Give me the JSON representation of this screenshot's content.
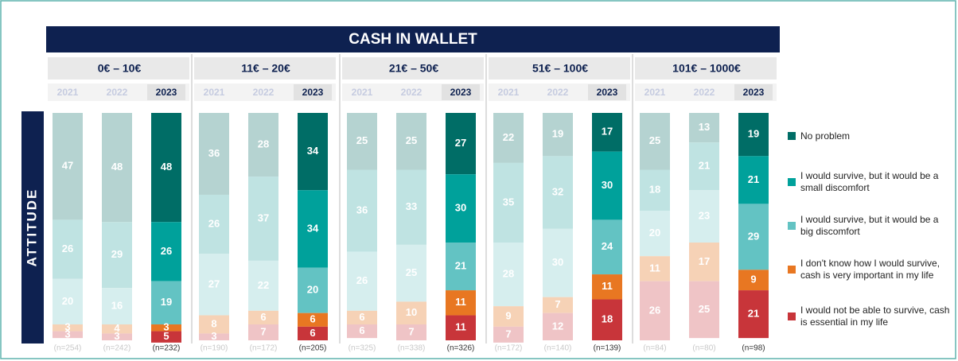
{
  "chart_data": {
    "type": "stacked-bar-groups",
    "title": "CASH IN WALLET",
    "ylabel": "ATTITUDE",
    "ylim": [
      0,
      100
    ],
    "series": [
      {
        "name": "No problem",
        "color": "#006d66",
        "faded_color": "#b5d3d1"
      },
      {
        "name": "I would survive, but it would be a small discomfort",
        "color": "#00a19b",
        "faded_color": "#bfe3e2"
      },
      {
        "name": "I would survive, but it would be a big discomfort",
        "color": "#63c3c3",
        "faded_color": "#d6eeee"
      },
      {
        "name": "I don't know how I would survive, cash is very important in my life",
        "color": "#e87722",
        "faded_color": "#f6d2b6"
      },
      {
        "name": "I would not be able to survive, cash is essential in my life",
        "color": "#c8353a",
        "faded_color": "#efc4c6"
      }
    ],
    "groups": [
      {
        "label": "0€ – 10€",
        "years": [
          "2021",
          "2022",
          "2023"
        ],
        "n_labels": [
          "(n=254)",
          "(n=242)",
          "(n=232)"
        ],
        "values": [
          [
            47,
            26,
            20,
            3,
            3
          ],
          [
            48,
            29,
            16,
            4,
            3
          ],
          [
            48,
            26,
            19,
            3,
            5
          ]
        ]
      },
      {
        "label": "11€ – 20€",
        "years": [
          "2021",
          "2022",
          "2023"
        ],
        "n_labels": [
          "(n=190)",
          "(n=172)",
          "(n=205)"
        ],
        "values": [
          [
            36,
            26,
            27,
            8,
            3
          ],
          [
            28,
            37,
            22,
            6,
            7
          ],
          [
            34,
            34,
            20,
            6,
            6
          ]
        ]
      },
      {
        "label": "21€ – 50€",
        "years": [
          "2021",
          "2022",
          "2023"
        ],
        "n_labels": [
          "(n=325)",
          "(n=338)",
          "(n=326)"
        ],
        "values": [
          [
            25,
            36,
            26,
            6,
            6
          ],
          [
            25,
            33,
            25,
            10,
            7
          ],
          [
            27,
            30,
            21,
            11,
            11
          ]
        ]
      },
      {
        "label": "51€ – 100€",
        "years": [
          "2021",
          "2022",
          "2023"
        ],
        "n_labels": [
          "(n=172)",
          "(n=140)",
          "(n=139)"
        ],
        "values": [
          [
            22,
            35,
            28,
            9,
            7
          ],
          [
            19,
            32,
            30,
            7,
            12
          ],
          [
            17,
            30,
            24,
            11,
            18
          ]
        ]
      },
      {
        "label": "101€ – 1000€",
        "years": [
          "2021",
          "2022",
          "2023"
        ],
        "n_labels": [
          "(n=84)",
          "(n=80)",
          "(n=98)"
        ],
        "values": [
          [
            25,
            18,
            20,
            11,
            26
          ],
          [
            13,
            21,
            23,
            17,
            25
          ],
          [
            19,
            21,
            29,
            9,
            21
          ]
        ]
      }
    ]
  }
}
